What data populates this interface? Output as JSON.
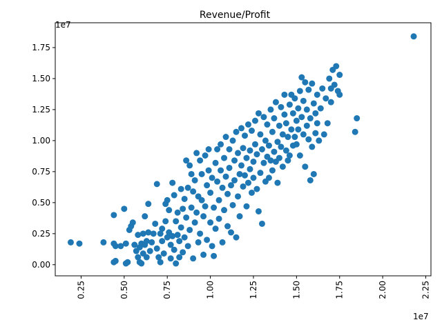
{
  "chart_data": {
    "type": "scatter",
    "title": "Revenue/Profit",
    "xlabel": "",
    "ylabel": "",
    "x_offset_label": "1e7",
    "y_offset_label": "1e7",
    "x_scale": 10000000,
    "y_scale": 10000000,
    "xlim": [
      0.1,
      2.28
    ],
    "ylim": [
      -0.09,
      1.95
    ],
    "x_ticks": [
      {
        "value": 0.25,
        "label": "0.25"
      },
      {
        "value": 0.5,
        "label": "0.50"
      },
      {
        "value": 0.75,
        "label": "0.75"
      },
      {
        "value": 1.0,
        "label": "1.00"
      },
      {
        "value": 1.25,
        "label": "1.25"
      },
      {
        "value": 1.5,
        "label": "1.50"
      },
      {
        "value": 1.75,
        "label": "1.75"
      },
      {
        "value": 2.0,
        "label": "2.00"
      },
      {
        "value": 2.25,
        "label": "2.25"
      }
    ],
    "y_ticks": [
      {
        "value": 0.0,
        "label": "0.00"
      },
      {
        "value": 0.25,
        "label": "0.25"
      },
      {
        "value": 0.5,
        "label": "0.50"
      },
      {
        "value": 0.75,
        "label": "0.75"
      },
      {
        "value": 1.0,
        "label": "1.00"
      },
      {
        "value": 1.25,
        "label": "1.25"
      },
      {
        "value": 1.5,
        "label": "1.50"
      },
      {
        "value": 1.75,
        "label": "1.75"
      }
    ],
    "grid": false,
    "marker_color": "#1f77b4",
    "points": [
      [
        0.19,
        0.18
      ],
      [
        0.24,
        0.17
      ],
      [
        0.38,
        0.18
      ],
      [
        0.44,
        0.17
      ],
      [
        0.45,
        0.15
      ],
      [
        0.44,
        0.4
      ],
      [
        0.45,
        0.03
      ],
      [
        0.44,
        0.02
      ],
      [
        0.48,
        0.15
      ],
      [
        0.5,
        0.45
      ],
      [
        0.51,
        0.17
      ],
      [
        0.51,
        0.01
      ],
      [
        0.52,
        0.02
      ],
      [
        0.53,
        0.28
      ],
      [
        0.54,
        0.31
      ],
      [
        0.55,
        0.34
      ],
      [
        0.56,
        0.16
      ],
      [
        0.57,
        0.11
      ],
      [
        0.58,
        0.06
      ],
      [
        0.58,
        0.24
      ],
      [
        0.59,
        0.14
      ],
      [
        0.59,
        0.02
      ],
      [
        0.6,
        0.01
      ],
      [
        0.6,
        0.17
      ],
      [
        0.61,
        0.25
      ],
      [
        0.61,
        0.09
      ],
      [
        0.62,
        0.39
      ],
      [
        0.62,
        0.16
      ],
      [
        0.63,
        0.19
      ],
      [
        0.63,
        0.06
      ],
      [
        0.64,
        0.49
      ],
      [
        0.64,
        0.26
      ],
      [
        0.65,
        0.11
      ],
      [
        0.66,
        0.18
      ],
      [
        0.67,
        0.25
      ],
      [
        0.68,
        0.33
      ],
      [
        0.69,
        0.65
      ],
      [
        0.69,
        0.13
      ],
      [
        0.7,
        0.06
      ],
      [
        0.71,
        0.25
      ],
      [
        0.71,
        0.02
      ],
      [
        0.72,
        0.19
      ],
      [
        0.72,
        0.29
      ],
      [
        0.73,
        0.09
      ],
      [
        0.74,
        0.49
      ],
      [
        0.74,
        0.35
      ],
      [
        0.75,
        0.52
      ],
      [
        0.75,
        0.22
      ],
      [
        0.76,
        0.44
      ],
      [
        0.76,
        0.26
      ],
      [
        0.77,
        0.05
      ],
      [
        0.77,
        0.16
      ],
      [
        0.78,
        0.66
      ],
      [
        0.78,
        0.23
      ],
      [
        0.79,
        0.56
      ],
      [
        0.79,
        0.12
      ],
      [
        0.8,
        0.35
      ],
      [
        0.8,
        0.01
      ],
      [
        0.81,
        0.24
      ],
      [
        0.81,
        0.42
      ],
      [
        0.82,
        0.06
      ],
      [
        0.82,
        0.19
      ],
      [
        0.83,
        0.61
      ],
      [
        0.83,
        0.3
      ],
      [
        0.84,
        0.45
      ],
      [
        0.84,
        0.1
      ],
      [
        0.85,
        0.53
      ],
      [
        0.85,
        0.22
      ],
      [
        0.86,
        0.84
      ],
      [
        0.86,
        0.38
      ],
      [
        0.87,
        0.62
      ],
      [
        0.87,
        0.15
      ],
      [
        0.88,
        0.8
      ],
      [
        0.88,
        0.28
      ],
      [
        0.89,
        0.73
      ],
      [
        0.89,
        0.46
      ],
      [
        0.9,
        0.05
      ],
      [
        0.9,
        0.59
      ],
      [
        0.91,
        0.34
      ],
      [
        0.91,
        0.68
      ],
      [
        0.92,
        0.9
      ],
      [
        0.92,
        0.42
      ],
      [
        0.93,
        0.55
      ],
      [
        0.93,
        0.18
      ],
      [
        0.94,
        0.84
      ],
      [
        0.94,
        0.25
      ],
      [
        0.95,
        0.73
      ],
      [
        0.95,
        0.52
      ],
      [
        0.96,
        0.39
      ],
      [
        0.96,
        0.08
      ],
      [
        0.97,
        0.88
      ],
      [
        0.97,
        0.47
      ],
      [
        0.98,
        0.64
      ],
      [
        0.98,
        0.2
      ],
      [
        0.99,
        0.93
      ],
      [
        0.99,
        0.76
      ],
      [
        1.0,
        0.34
      ],
      [
        1.0,
        0.58
      ],
      [
        1.01,
        0.15
      ],
      [
        1.01,
        0.7
      ],
      [
        1.02,
        0.07
      ],
      [
        1.02,
        0.46
      ],
      [
        1.03,
        0.82
      ],
      [
        1.03,
        0.29
      ],
      [
        1.04,
        0.67
      ],
      [
        1.04,
        0.93
      ],
      [
        1.05,
        0.52
      ],
      [
        1.05,
        0.37
      ],
      [
        1.06,
        0.76
      ],
      [
        1.06,
        0.97
      ],
      [
        1.07,
        0.18
      ],
      [
        1.07,
        0.62
      ],
      [
        1.08,
        0.86
      ],
      [
        1.08,
        0.44
      ],
      [
        1.09,
        0.71
      ],
      [
        1.09,
        1.03
      ],
      [
        1.1,
        0.31
      ],
      [
        1.1,
        0.57
      ],
      [
        1.11,
        0.93
      ],
      [
        1.11,
        0.78
      ],
      [
        1.12,
        0.26
      ],
      [
        1.12,
        0.64
      ],
      [
        1.13,
        1.0
      ],
      [
        1.13,
        0.48
      ],
      [
        1.14,
        0.84
      ],
      [
        1.14,
        0.68
      ],
      [
        1.15,
        0.22
      ],
      [
        1.15,
        1.07
      ],
      [
        1.16,
        0.55
      ],
      [
        1.16,
        0.9
      ],
      [
        1.17,
        0.73
      ],
      [
        1.17,
        0.39
      ],
      [
        1.18,
        1.1
      ],
      [
        1.18,
        0.8
      ],
      [
        1.19,
        0.63
      ],
      [
        1.19,
        0.94
      ],
      [
        1.2,
        0.72
      ],
      [
        1.2,
        1.04
      ],
      [
        1.21,
        0.47
      ],
      [
        1.21,
        0.86
      ],
      [
        1.22,
        1.13
      ],
      [
        1.22,
        0.66
      ],
      [
        1.23,
        0.92
      ],
      [
        1.23,
        0.77
      ],
      [
        1.24,
        0.58
      ],
      [
        1.24,
        1.08
      ],
      [
        1.25,
        0.83
      ],
      [
        1.25,
        0.7
      ],
      [
        1.26,
        1.16
      ],
      [
        1.26,
        0.97
      ],
      [
        1.27,
        0.61
      ],
      [
        1.27,
        0.89
      ],
      [
        1.28,
        1.22
      ],
      [
        1.28,
        0.43
      ],
      [
        1.29,
        0.74
      ],
      [
        1.29,
        1.05
      ],
      [
        1.3,
        0.93
      ],
      [
        1.3,
        0.33
      ],
      [
        1.31,
        1.19
      ],
      [
        1.31,
        0.82
      ],
      [
        1.32,
        0.67
      ],
      [
        1.32,
        1.0
      ],
      [
        1.33,
        0.87
      ],
      [
        1.33,
        1.13
      ],
      [
        1.34,
        0.7
      ],
      [
        1.34,
        0.96
      ],
      [
        1.35,
        1.25
      ],
      [
        1.35,
        0.84
      ],
      [
        1.36,
        1.07
      ],
      [
        1.36,
        0.76
      ],
      [
        1.37,
        0.91
      ],
      [
        1.37,
        1.18
      ],
      [
        1.38,
        0.83
      ],
      [
        1.38,
        1.31
      ],
      [
        1.39,
        0.99
      ],
      [
        1.39,
        0.66
      ],
      [
        1.4,
        1.12
      ],
      [
        1.4,
        0.86
      ],
      [
        1.41,
        1.27
      ],
      [
        1.41,
        0.95
      ],
      [
        1.42,
        1.05
      ],
      [
        1.42,
        0.79
      ],
      [
        1.43,
        1.21
      ],
      [
        1.43,
        1.37
      ],
      [
        1.44,
        0.92
      ],
      [
        1.44,
        1.14
      ],
      [
        1.45,
        1.03
      ],
      [
        1.45,
        0.84
      ],
      [
        1.46,
        1.29
      ],
      [
        1.46,
        0.88
      ],
      [
        1.47,
        1.09
      ],
      [
        1.47,
        1.37
      ],
      [
        1.48,
        0.96
      ],
      [
        1.48,
        1.22
      ],
      [
        1.49,
        1.03
      ],
      [
        1.49,
        1.34
      ],
      [
        1.5,
        1.16
      ],
      [
        1.5,
        0.97
      ],
      [
        1.51,
        1.26
      ],
      [
        1.51,
        1.09
      ],
      [
        1.52,
        1.4
      ],
      [
        1.52,
        0.88
      ],
      [
        1.53,
        1.19
      ],
      [
        1.53,
        1.51
      ],
      [
        1.54,
        1.05
      ],
      [
        1.54,
        1.32
      ],
      [
        1.55,
        0.79
      ],
      [
        1.55,
        1.47
      ],
      [
        1.56,
        1.12
      ],
      [
        1.56,
        1.25
      ],
      [
        1.57,
        1.01
      ],
      [
        1.57,
        1.41
      ],
      [
        1.58,
        0.68
      ],
      [
        1.58,
        1.18
      ],
      [
        1.59,
        1.46
      ],
      [
        1.59,
        0.95
      ],
      [
        1.6,
        1.3
      ],
      [
        1.6,
        0.73
      ],
      [
        1.61,
        1.22
      ],
      [
        1.61,
        1.06
      ],
      [
        1.62,
        1.37
      ],
      [
        1.62,
        1.14
      ],
      [
        1.63,
        1.0
      ],
      [
        1.64,
        1.26
      ],
      [
        1.65,
        1.42
      ],
      [
        1.66,
        1.05
      ],
      [
        1.67,
        1.34
      ],
      [
        1.68,
        1.14
      ],
      [
        1.69,
        1.5
      ],
      [
        1.7,
        1.31
      ],
      [
        1.7,
        1.42
      ],
      [
        1.71,
        1.57
      ],
      [
        1.72,
        1.45
      ],
      [
        1.73,
        1.6
      ],
      [
        1.74,
        1.4
      ],
      [
        1.75,
        1.53
      ],
      [
        1.75,
        1.37
      ],
      [
        1.84,
        1.07
      ],
      [
        1.85,
        1.18
      ],
      [
        2.18,
        1.84
      ]
    ]
  }
}
